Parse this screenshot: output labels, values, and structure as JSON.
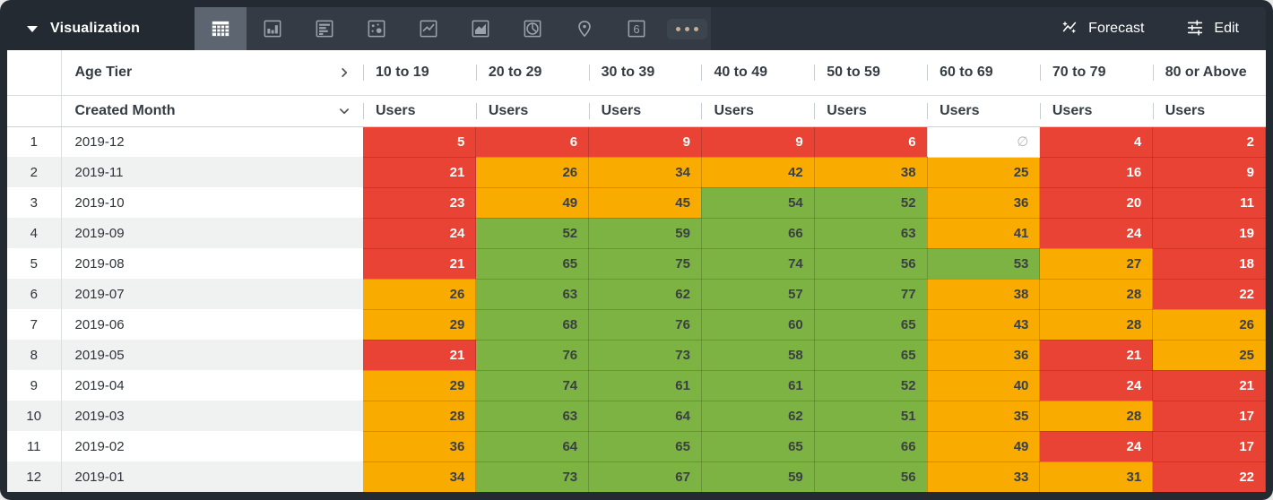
{
  "toolbar": {
    "title": "Visualization",
    "forecast_label": "Forecast",
    "edit_label": "Edit",
    "viz_types": [
      "table",
      "bar-chart",
      "row-chart",
      "scatter-plot",
      "line-chart",
      "area-chart",
      "pie-chart",
      "map",
      "single-value",
      "more"
    ],
    "selected_viz": "table"
  },
  "table": {
    "pivot_field_label": "Age Tier",
    "row_field_label": "Created Month",
    "measure_label": "Users",
    "columns": [
      "10 to 19",
      "20 to 29",
      "30 to 39",
      "40 to 49",
      "50 to 59",
      "60 to 69",
      "70 to 79",
      "80 or Above"
    ],
    "null_symbol": "∅",
    "rows": [
      {
        "index": "1",
        "month": "2019-12",
        "cells": [
          {
            "v": "5",
            "c": "red"
          },
          {
            "v": "6",
            "c": "red"
          },
          {
            "v": "9",
            "c": "red"
          },
          {
            "v": "9",
            "c": "red"
          },
          {
            "v": "6",
            "c": "red"
          },
          {
            "v": null,
            "c": "null"
          },
          {
            "v": "4",
            "c": "red"
          },
          {
            "v": "2",
            "c": "red"
          }
        ]
      },
      {
        "index": "2",
        "month": "2019-11",
        "cells": [
          {
            "v": "21",
            "c": "red"
          },
          {
            "v": "26",
            "c": "orange"
          },
          {
            "v": "34",
            "c": "orange"
          },
          {
            "v": "42",
            "c": "orange"
          },
          {
            "v": "38",
            "c": "orange"
          },
          {
            "v": "25",
            "c": "orange"
          },
          {
            "v": "16",
            "c": "red"
          },
          {
            "v": "9",
            "c": "red"
          }
        ]
      },
      {
        "index": "3",
        "month": "2019-10",
        "cells": [
          {
            "v": "23",
            "c": "red"
          },
          {
            "v": "49",
            "c": "orange"
          },
          {
            "v": "45",
            "c": "orange"
          },
          {
            "v": "54",
            "c": "green"
          },
          {
            "v": "52",
            "c": "green"
          },
          {
            "v": "36",
            "c": "orange"
          },
          {
            "v": "20",
            "c": "red"
          },
          {
            "v": "11",
            "c": "red"
          }
        ]
      },
      {
        "index": "4",
        "month": "2019-09",
        "cells": [
          {
            "v": "24",
            "c": "red"
          },
          {
            "v": "52",
            "c": "green"
          },
          {
            "v": "59",
            "c": "green"
          },
          {
            "v": "66",
            "c": "green"
          },
          {
            "v": "63",
            "c": "green"
          },
          {
            "v": "41",
            "c": "orange"
          },
          {
            "v": "24",
            "c": "red"
          },
          {
            "v": "19",
            "c": "red"
          }
        ]
      },
      {
        "index": "5",
        "month": "2019-08",
        "cells": [
          {
            "v": "21",
            "c": "red"
          },
          {
            "v": "65",
            "c": "green"
          },
          {
            "v": "75",
            "c": "green"
          },
          {
            "v": "74",
            "c": "green"
          },
          {
            "v": "56",
            "c": "green"
          },
          {
            "v": "53",
            "c": "green"
          },
          {
            "v": "27",
            "c": "orange"
          },
          {
            "v": "18",
            "c": "red"
          }
        ]
      },
      {
        "index": "6",
        "month": "2019-07",
        "cells": [
          {
            "v": "26",
            "c": "orange"
          },
          {
            "v": "63",
            "c": "green"
          },
          {
            "v": "62",
            "c": "green"
          },
          {
            "v": "57",
            "c": "green"
          },
          {
            "v": "77",
            "c": "green"
          },
          {
            "v": "38",
            "c": "orange"
          },
          {
            "v": "28",
            "c": "orange"
          },
          {
            "v": "22",
            "c": "red"
          }
        ]
      },
      {
        "index": "7",
        "month": "2019-06",
        "cells": [
          {
            "v": "29",
            "c": "orange"
          },
          {
            "v": "68",
            "c": "green"
          },
          {
            "v": "76",
            "c": "green"
          },
          {
            "v": "60",
            "c": "green"
          },
          {
            "v": "65",
            "c": "green"
          },
          {
            "v": "43",
            "c": "orange"
          },
          {
            "v": "28",
            "c": "orange"
          },
          {
            "v": "26",
            "c": "orange"
          }
        ]
      },
      {
        "index": "8",
        "month": "2019-05",
        "cells": [
          {
            "v": "21",
            "c": "red"
          },
          {
            "v": "76",
            "c": "green"
          },
          {
            "v": "73",
            "c": "green"
          },
          {
            "v": "58",
            "c": "green"
          },
          {
            "v": "65",
            "c": "green"
          },
          {
            "v": "36",
            "c": "orange"
          },
          {
            "v": "21",
            "c": "red"
          },
          {
            "v": "25",
            "c": "orange"
          }
        ]
      },
      {
        "index": "9",
        "month": "2019-04",
        "cells": [
          {
            "v": "29",
            "c": "orange"
          },
          {
            "v": "74",
            "c": "green"
          },
          {
            "v": "61",
            "c": "green"
          },
          {
            "v": "61",
            "c": "green"
          },
          {
            "v": "52",
            "c": "green"
          },
          {
            "v": "40",
            "c": "orange"
          },
          {
            "v": "24",
            "c": "red"
          },
          {
            "v": "21",
            "c": "red"
          }
        ]
      },
      {
        "index": "10",
        "month": "2019-03",
        "cells": [
          {
            "v": "28",
            "c": "orange"
          },
          {
            "v": "63",
            "c": "green"
          },
          {
            "v": "64",
            "c": "green"
          },
          {
            "v": "62",
            "c": "green"
          },
          {
            "v": "51",
            "c": "green"
          },
          {
            "v": "35",
            "c": "orange"
          },
          {
            "v": "28",
            "c": "orange"
          },
          {
            "v": "17",
            "c": "red"
          }
        ]
      },
      {
        "index": "11",
        "month": "2019-02",
        "cells": [
          {
            "v": "36",
            "c": "orange"
          },
          {
            "v": "64",
            "c": "green"
          },
          {
            "v": "65",
            "c": "green"
          },
          {
            "v": "65",
            "c": "green"
          },
          {
            "v": "66",
            "c": "green"
          },
          {
            "v": "49",
            "c": "orange"
          },
          {
            "v": "24",
            "c": "red"
          },
          {
            "v": "17",
            "c": "red"
          }
        ]
      },
      {
        "index": "12",
        "month": "2019-01",
        "cells": [
          {
            "v": "34",
            "c": "orange"
          },
          {
            "v": "73",
            "c": "green"
          },
          {
            "v": "67",
            "c": "green"
          },
          {
            "v": "59",
            "c": "green"
          },
          {
            "v": "56",
            "c": "green"
          },
          {
            "v": "33",
            "c": "orange"
          },
          {
            "v": "31",
            "c": "orange"
          },
          {
            "v": "22",
            "c": "red"
          }
        ]
      }
    ]
  },
  "colors": {
    "red": "#E94335",
    "orange": "#F9AB00",
    "green": "#7CB342",
    "null_bg": "#FFFFFF",
    "topbar_bg": "#2A313A",
    "selected_viz_bg": "#5D6670"
  }
}
